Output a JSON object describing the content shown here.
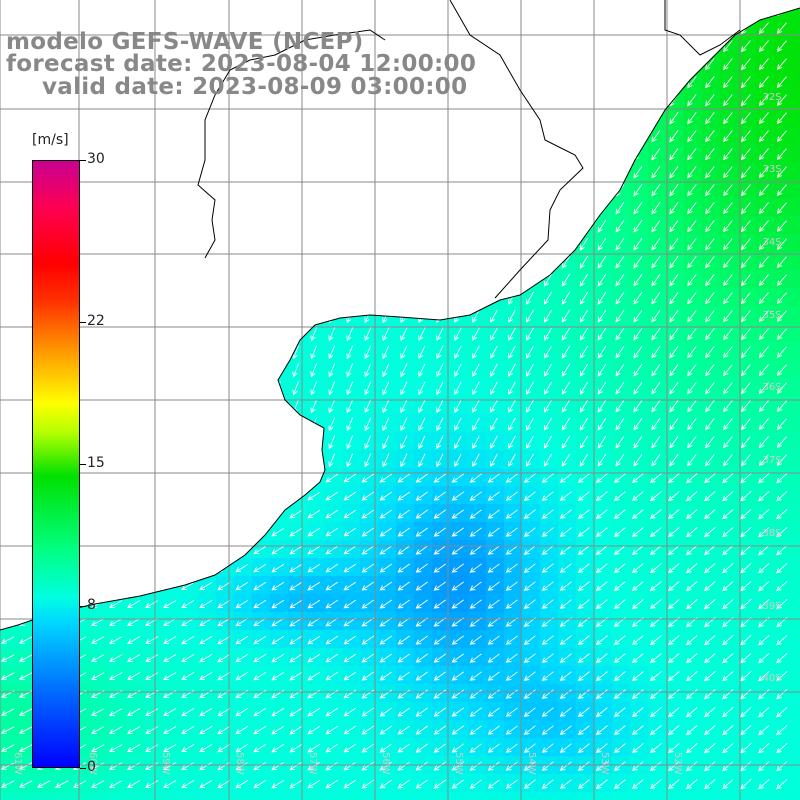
{
  "title": {
    "model": "modelo GEFS-WAVE (NCEP)",
    "forecast": "forecast date: 2023-08-04 12:00:00",
    "valid": "valid date: 2023-08-09 03:00:00"
  },
  "colorbar": {
    "unit": "[m/s]",
    "ticks": [
      {
        "label": "30",
        "value": 30
      },
      {
        "label": "22",
        "value": 22
      },
      {
        "label": "15",
        "value": 15
      },
      {
        "label": "8",
        "value": 8
      },
      {
        "label": "0",
        "value": 0
      }
    ],
    "range": [
      0,
      30
    ]
  },
  "map": {
    "lon_range": [
      -62,
      -51
    ],
    "lat_range": [
      -41,
      -30.5
    ],
    "lat_labels": [
      "32S",
      "33S",
      "34S",
      "35S",
      "36S",
      "37S",
      "38S",
      "39S",
      "40S"
    ],
    "lon_labels": [
      "61W",
      "60W",
      "59W",
      "58W",
      "57W",
      "56W",
      "55W",
      "54W",
      "53W",
      "52W"
    ],
    "grid_color": "#888888",
    "coast_color": "#000000",
    "land_color": "#ffffff",
    "arrow_color": "#ffffff"
  }
}
